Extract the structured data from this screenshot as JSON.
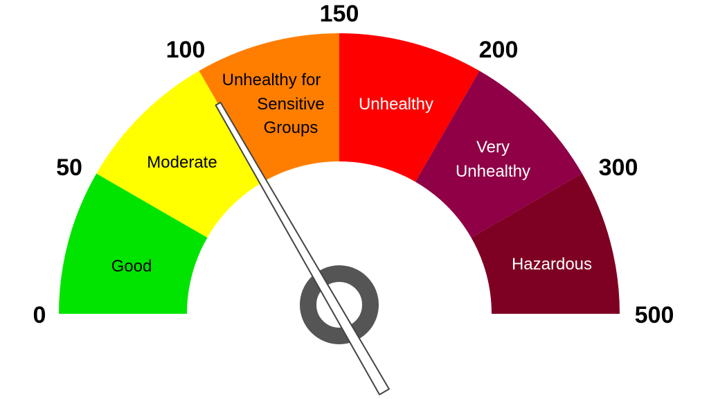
{
  "gauge": {
    "tick_labels": [
      "0",
      "50",
      "100",
      "150",
      "200",
      "300",
      "500"
    ],
    "segments": [
      {
        "name": "Good",
        "range": [
          0,
          50
        ],
        "color": "#00e400",
        "text_color": "#000000",
        "lines": [
          "Good"
        ]
      },
      {
        "name": "Moderate",
        "range": [
          50,
          100
        ],
        "color": "#ffff00",
        "text_color": "#000000",
        "lines": [
          "Moderate"
        ]
      },
      {
        "name": "Unhealthy for Sensitive Groups",
        "range": [
          100,
          150
        ],
        "color": "#ff7e00",
        "text_color": "#000000",
        "lines": [
          "Unhealthy for",
          "Sensitive",
          "Groups"
        ]
      },
      {
        "name": "Unhealthy",
        "range": [
          150,
          200
        ],
        "color": "#ff0000",
        "text_color": "#ffffff",
        "lines": [
          "Unhealthy"
        ]
      },
      {
        "name": "Very Unhealthy",
        "range": [
          200,
          300
        ],
        "color": "#8f0046",
        "text_color": "#ffffff",
        "lines": [
          "Very",
          "Unhealthy"
        ]
      },
      {
        "name": "Hazardous",
        "range": [
          300,
          500
        ],
        "color": "#7e0023",
        "text_color": "#ffffff",
        "lines": [
          "Hazardous"
        ]
      }
    ],
    "needle_value": 100,
    "needle_color": "#ffffff",
    "hub_color": "#555555"
  }
}
